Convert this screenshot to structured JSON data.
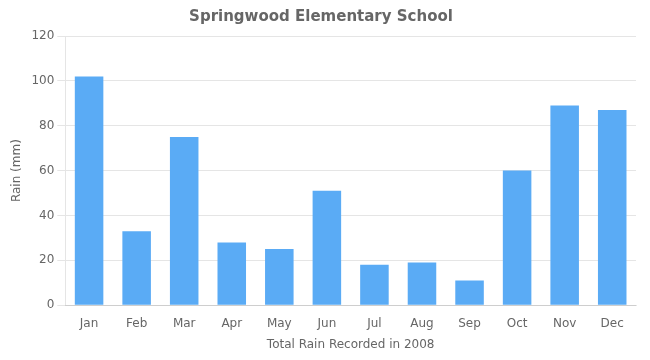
{
  "chart_data": {
    "type": "bar",
    "title": "Springwood Elementary School",
    "xlabel": "Total Rain Recorded in 2008",
    "ylabel": "Rain (mm)",
    "categories": [
      "Jan",
      "Feb",
      "Mar",
      "Apr",
      "May",
      "Jun",
      "Jul",
      "Aug",
      "Sep",
      "Oct",
      "Nov",
      "Dec"
    ],
    "values": [
      102,
      33,
      75,
      28,
      25,
      51,
      18,
      19,
      11,
      60,
      89,
      87
    ],
    "color": "#5aabf5",
    "ylim": [
      0,
      120
    ],
    "yticks": [
      0,
      20,
      40,
      60,
      80,
      100,
      120
    ],
    "grid": true
  }
}
